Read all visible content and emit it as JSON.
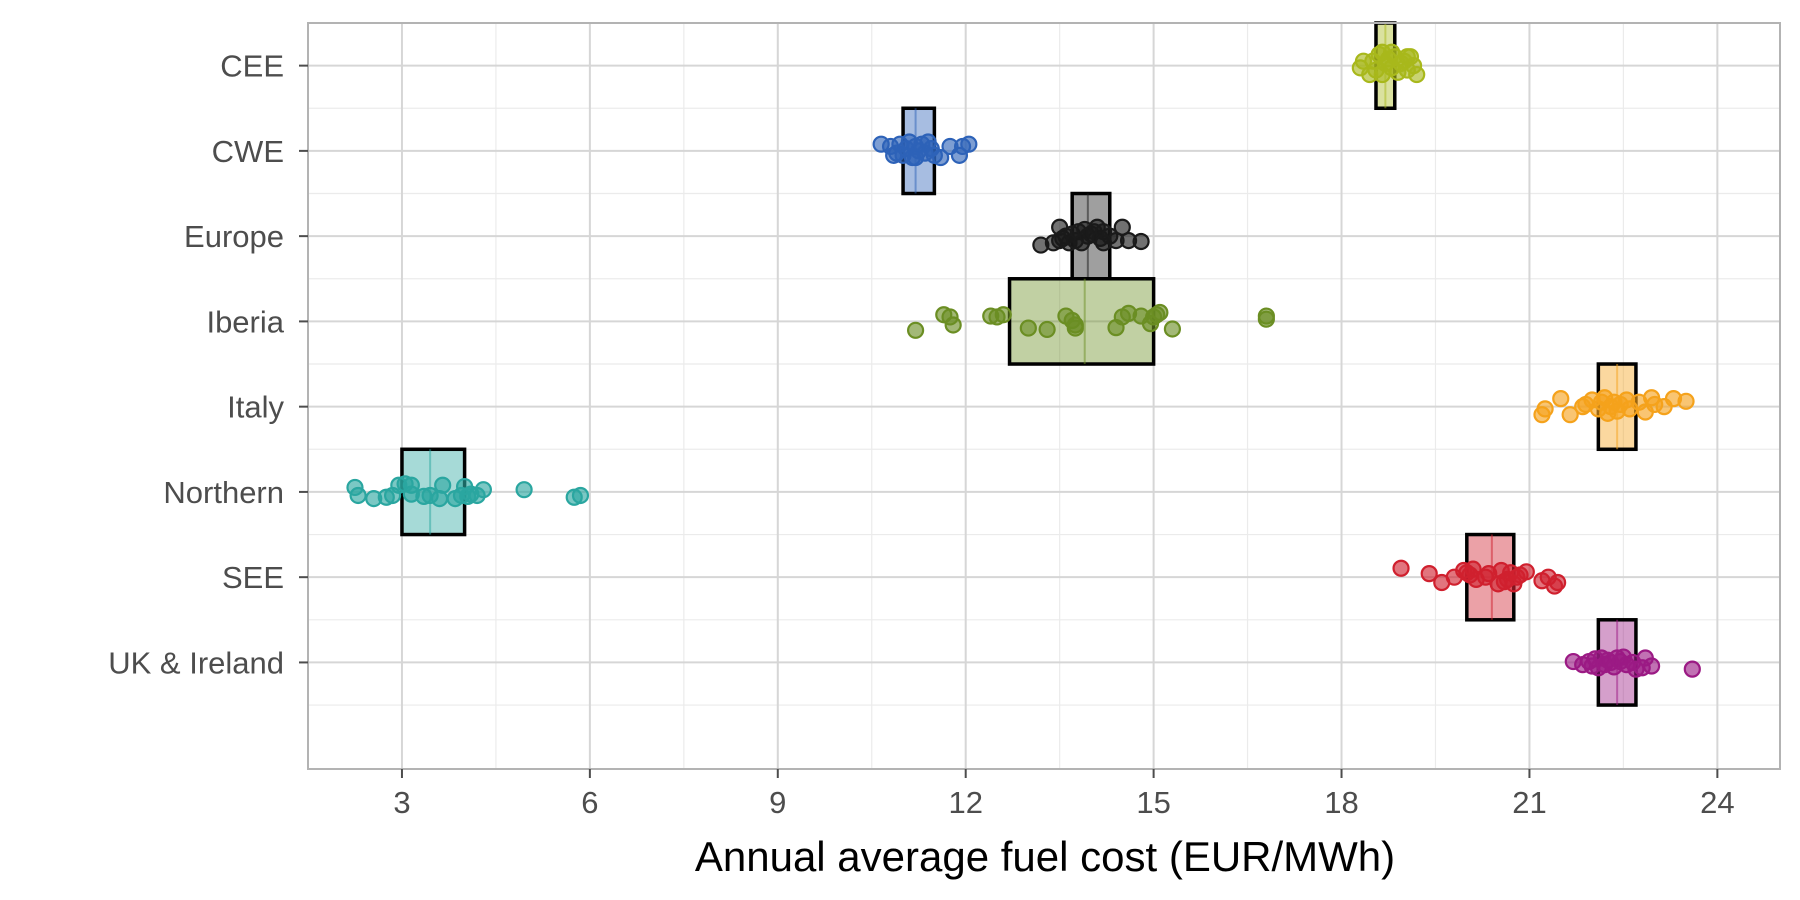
{
  "chart_data": {
    "type": "scatter",
    "title": "",
    "xlabel": "Annual average fuel cost (EUR/MWh)",
    "ylabel": "",
    "xlim": [
      1.5,
      25.0
    ],
    "x_ticks": [
      3,
      6,
      9,
      12,
      15,
      18,
      21,
      24
    ],
    "x_tick_labels": [
      "3",
      "6",
      "9",
      "12",
      "15",
      "18",
      "21",
      "24"
    ],
    "grid": true,
    "legend": "none",
    "categories": [
      "CEE",
      "CWE",
      "Europe",
      "Iberia",
      "Italy",
      "Northern",
      "SEE",
      "UK & Ireland"
    ],
    "series": [
      {
        "category": "CEE",
        "color": "#A8B81B",
        "box": {
          "q1": 18.55,
          "median": 18.7,
          "q3": 18.85
        },
        "points": [
          [
            18.5,
            0.1
          ],
          [
            18.55,
            -0.1
          ],
          [
            18.6,
            0.25
          ],
          [
            18.65,
            -0.2
          ],
          [
            18.7,
            0.05
          ],
          [
            18.75,
            0.15
          ],
          [
            18.8,
            -0.05
          ],
          [
            18.85,
            0.2
          ],
          [
            18.9,
            -0.15
          ],
          [
            18.95,
            0.05
          ],
          [
            19.0,
            0.1
          ],
          [
            19.05,
            -0.1
          ],
          [
            19.1,
            0.2
          ],
          [
            18.3,
            -0.05
          ],
          [
            18.35,
            0.1
          ],
          [
            19.15,
            0.0
          ],
          [
            19.2,
            -0.2
          ],
          [
            18.45,
            -0.2
          ],
          [
            18.65,
            0.3
          ],
          [
            19.05,
            0.2
          ],
          [
            18.8,
            0.3
          ]
        ]
      },
      {
        "category": "CWE",
        "color": "#2D62B8",
        "box": {
          "q1": 11.0,
          "median": 11.2,
          "q3": 11.5
        },
        "points": [
          [
            10.65,
            0.15
          ],
          [
            10.8,
            0.1
          ],
          [
            10.9,
            -0.05
          ],
          [
            10.95,
            0.15
          ],
          [
            11.0,
            -0.1
          ],
          [
            11.05,
            0.05
          ],
          [
            11.1,
            0.2
          ],
          [
            11.15,
            -0.15
          ],
          [
            11.2,
            0.1
          ],
          [
            11.25,
            0.0
          ],
          [
            11.3,
            0.15
          ],
          [
            11.35,
            -0.05
          ],
          [
            11.4,
            0.2
          ],
          [
            11.45,
            0.05
          ],
          [
            11.5,
            -0.1
          ],
          [
            11.6,
            -0.15
          ],
          [
            11.75,
            0.1
          ],
          [
            11.9,
            -0.1
          ],
          [
            11.95,
            0.1
          ],
          [
            12.05,
            0.15
          ],
          [
            10.85,
            -0.1
          ],
          [
            11.2,
            -0.15
          ]
        ]
      },
      {
        "category": "Europe",
        "color": "#1A1A1A",
        "box": {
          "q1": 13.7,
          "median": 13.95,
          "q3": 14.3
        },
        "points": [
          [
            13.2,
            -0.2
          ],
          [
            13.4,
            -0.15
          ],
          [
            13.5,
            0.2
          ],
          [
            13.55,
            -0.05
          ],
          [
            13.6,
            0.0
          ],
          [
            13.65,
            -0.15
          ],
          [
            13.7,
            0.05
          ],
          [
            13.75,
            -0.1
          ],
          [
            13.8,
            0.1
          ],
          [
            13.85,
            -0.15
          ],
          [
            13.9,
            0.15
          ],
          [
            13.95,
            0.0
          ],
          [
            14.0,
            0.05
          ],
          [
            14.05,
            0.1
          ],
          [
            14.1,
            0.2
          ],
          [
            14.15,
            -0.05
          ],
          [
            14.2,
            0.1
          ],
          [
            14.3,
            0.0
          ],
          [
            14.4,
            -0.1
          ],
          [
            14.5,
            0.2
          ],
          [
            14.6,
            -0.1
          ],
          [
            14.8,
            -0.12
          ],
          [
            13.5,
            -0.1
          ],
          [
            14.2,
            -0.15
          ]
        ]
      },
      {
        "category": "Iberia",
        "color": "#6B8E23",
        "box": {
          "q1": 12.7,
          "median": 13.9,
          "q3": 15.0
        },
        "points": [
          [
            11.2,
            -0.2
          ],
          [
            11.65,
            0.15
          ],
          [
            11.75,
            0.1
          ],
          [
            11.8,
            -0.08
          ],
          [
            12.4,
            0.12
          ],
          [
            12.5,
            0.1
          ],
          [
            12.6,
            0.15
          ],
          [
            13.0,
            -0.15
          ],
          [
            13.3,
            -0.18
          ],
          [
            13.6,
            0.12
          ],
          [
            13.7,
            0.02
          ],
          [
            13.75,
            -0.15
          ],
          [
            13.75,
            -0.08
          ],
          [
            14.4,
            -0.14
          ],
          [
            14.5,
            0.1
          ],
          [
            14.6,
            0.18
          ],
          [
            14.8,
            0.12
          ],
          [
            14.95,
            -0.05
          ],
          [
            15.0,
            0.1
          ],
          [
            15.05,
            0.15
          ],
          [
            15.1,
            0.2
          ],
          [
            15.3,
            -0.17
          ],
          [
            16.8,
            0.12
          ],
          [
            16.8,
            0.05
          ]
        ]
      },
      {
        "category": "Italy",
        "color": "#F5A21B",
        "box": {
          "q1": 22.1,
          "median": 22.4,
          "q3": 22.7
        },
        "points": [
          [
            21.2,
            -0.18
          ],
          [
            21.25,
            -0.05
          ],
          [
            21.5,
            0.18
          ],
          [
            21.65,
            -0.18
          ],
          [
            21.85,
            0.0
          ],
          [
            21.9,
            0.05
          ],
          [
            22.0,
            0.15
          ],
          [
            22.1,
            -0.05
          ],
          [
            22.15,
            0.1
          ],
          [
            22.2,
            0.2
          ],
          [
            22.25,
            -0.15
          ],
          [
            22.3,
            0.0
          ],
          [
            22.35,
            0.1
          ],
          [
            22.4,
            -0.1
          ],
          [
            22.45,
            0.05
          ],
          [
            22.55,
            0.15
          ],
          [
            22.6,
            -0.05
          ],
          [
            22.75,
            0.1
          ],
          [
            22.85,
            -0.12
          ],
          [
            22.95,
            0.2
          ],
          [
            23.0,
            0.05
          ],
          [
            23.15,
            0.0
          ],
          [
            23.3,
            0.18
          ],
          [
            23.5,
            0.12
          ]
        ]
      },
      {
        "category": "Northern",
        "color": "#2AA6A0",
        "box": {
          "q1": 3.0,
          "median": 3.45,
          "q3": 4.0
        },
        "points": [
          [
            2.25,
            0.1
          ],
          [
            2.3,
            -0.08
          ],
          [
            2.55,
            -0.15
          ],
          [
            2.75,
            -0.12
          ],
          [
            2.85,
            -0.08
          ],
          [
            2.95,
            0.15
          ],
          [
            3.05,
            0.18
          ],
          [
            3.15,
            0.15
          ],
          [
            3.15,
            -0.05
          ],
          [
            3.35,
            -0.1
          ],
          [
            3.45,
            -0.08
          ],
          [
            3.6,
            -0.15
          ],
          [
            3.65,
            0.15
          ],
          [
            3.85,
            -0.15
          ],
          [
            3.95,
            -0.08
          ],
          [
            4.0,
            0.12
          ],
          [
            4.05,
            -0.1
          ],
          [
            4.1,
            -0.05
          ],
          [
            4.2,
            -0.08
          ],
          [
            4.3,
            0.05
          ],
          [
            4.95,
            0.05
          ],
          [
            5.75,
            -0.12
          ],
          [
            5.85,
            -0.08
          ]
        ]
      },
      {
        "category": "SEE",
        "color": "#D0202E",
        "box": {
          "q1": 20.0,
          "median": 20.4,
          "q3": 20.75
        },
        "points": [
          [
            18.95,
            0.2
          ],
          [
            19.4,
            0.08
          ],
          [
            19.6,
            -0.12
          ],
          [
            19.8,
            0.0
          ],
          [
            19.95,
            0.15
          ],
          [
            20.0,
            0.1
          ],
          [
            20.05,
            0.05
          ],
          [
            20.1,
            0.18
          ],
          [
            20.15,
            -0.05
          ],
          [
            20.3,
            0.0
          ],
          [
            20.35,
            0.08
          ],
          [
            20.55,
            0.15
          ],
          [
            20.6,
            -0.1
          ],
          [
            20.65,
            -0.05
          ],
          [
            20.7,
            0.1
          ],
          [
            20.75,
            -0.15
          ],
          [
            20.85,
            0.05
          ],
          [
            20.95,
            0.12
          ],
          [
            21.2,
            -0.08
          ],
          [
            21.3,
            0.0
          ],
          [
            21.4,
            -0.2
          ],
          [
            21.45,
            -0.12
          ],
          [
            20.5,
            -0.15
          ],
          [
            20.8,
            0.0
          ]
        ]
      },
      {
        "category": "UK & Ireland",
        "color": "#9B1A84",
        "box": {
          "q1": 22.1,
          "median": 22.4,
          "q3": 22.7
        },
        "points": [
          [
            21.7,
            0.02
          ],
          [
            21.85,
            -0.05
          ],
          [
            21.95,
            0.02
          ],
          [
            22.0,
            -0.08
          ],
          [
            22.05,
            0.08
          ],
          [
            22.1,
            -0.12
          ],
          [
            22.15,
            0.1
          ],
          [
            22.2,
            -0.05
          ],
          [
            22.25,
            0.05
          ],
          [
            22.3,
            0.0
          ],
          [
            22.35,
            -0.1
          ],
          [
            22.4,
            0.1
          ],
          [
            22.45,
            0.02
          ],
          [
            22.5,
            0.12
          ],
          [
            22.55,
            -0.05
          ],
          [
            22.65,
            0.0
          ],
          [
            22.7,
            -0.15
          ],
          [
            22.8,
            -0.12
          ],
          [
            22.85,
            0.1
          ],
          [
            22.95,
            -0.08
          ],
          [
            23.6,
            -0.15
          ]
        ]
      }
    ]
  }
}
